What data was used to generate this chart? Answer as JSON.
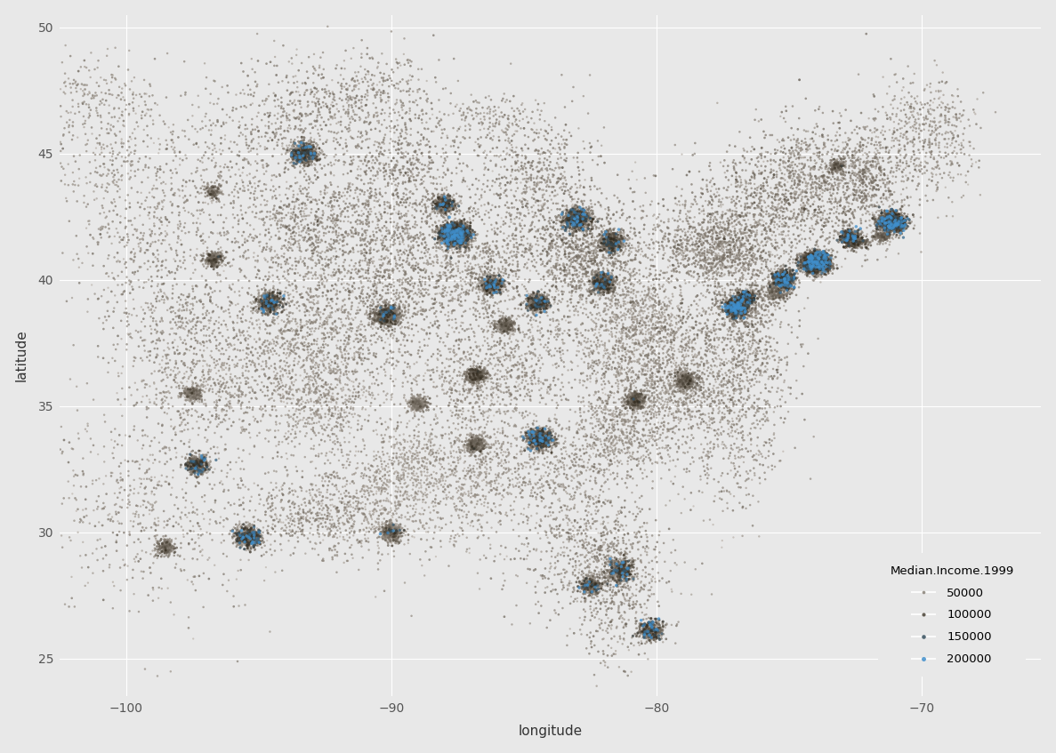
{
  "xlabel": "longitude",
  "ylabel": "latitude",
  "xlim": [
    -102.5,
    -65.5
  ],
  "ylim": [
    23.5,
    50.5
  ],
  "xticks": [
    -100,
    -90,
    -80,
    -70
  ],
  "yticks": [
    25,
    30,
    35,
    40,
    45,
    50
  ],
  "background_color": "#E8E8E8",
  "panel_background": "#E8E8E8",
  "grid_color": "#FFFFFF",
  "legend_title": "Median.Income.1999",
  "legend_values": [
    50000,
    100000,
    150000,
    200000
  ],
  "dot_alpha": 0.75,
  "seed": 12345
}
